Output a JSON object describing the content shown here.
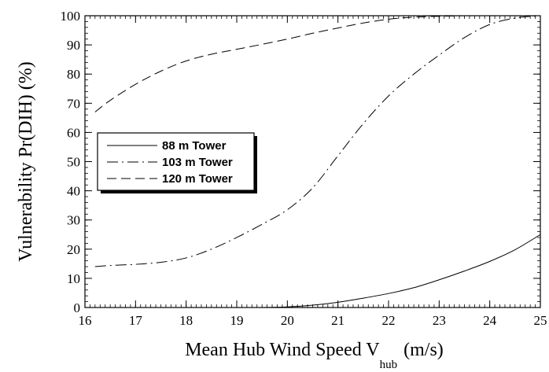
{
  "chart_data": {
    "type": "line",
    "xlabel_main": "Mean Hub Wind Speed V",
    "xlabel_sub": "hub",
    "xlabel_unit": "(m/s)",
    "ylabel": "Vulnerability Pr(DIH) (%)",
    "xlim": [
      16,
      25
    ],
    "ylim": [
      0,
      100
    ],
    "xticks": [
      16,
      17,
      18,
      19,
      20,
      21,
      22,
      23,
      24,
      25
    ],
    "yticks": [
      0,
      10,
      20,
      30,
      40,
      50,
      60,
      70,
      80,
      90,
      100
    ],
    "grid": false,
    "legend_position": "middle-left",
    "series": [
      {
        "name": "88 m Tower",
        "dash": "solid",
        "x": [
          19.5,
          20.0,
          20.5,
          21.0,
          21.5,
          22.0,
          22.5,
          23.0,
          23.5,
          24.0,
          24.5,
          25.0
        ],
        "y": [
          0.0,
          0.2,
          0.8,
          1.8,
          3.2,
          4.8,
          6.8,
          9.5,
          12.5,
          15.8,
          19.8,
          25.0
        ]
      },
      {
        "name": "103 m Tower",
        "dash": "dashdot",
        "x": [
          16.2,
          16.5,
          17.0,
          17.5,
          18.0,
          18.5,
          19.0,
          19.5,
          20.0,
          20.5,
          21.0,
          21.5,
          22.0,
          22.5,
          23.0,
          23.5,
          24.0,
          24.5,
          25.0
        ],
        "y": [
          14.0,
          14.4,
          14.8,
          15.5,
          17.0,
          20.0,
          24.0,
          28.5,
          33.5,
          41.0,
          52.0,
          63.0,
          72.5,
          80.0,
          86.5,
          92.5,
          97.0,
          99.2,
          100.0
        ]
      },
      {
        "name": "120 m Tower",
        "dash": "dashed",
        "x": [
          16.2,
          16.5,
          17.0,
          17.5,
          18.0,
          18.5,
          19.0,
          19.5,
          20.0,
          20.5,
          21.0,
          21.5,
          22.0,
          22.5,
          23.0,
          23.5,
          24.0,
          24.5,
          25.0
        ],
        "y": [
          67.0,
          71.0,
          76.5,
          81.0,
          84.5,
          86.8,
          88.5,
          90.2,
          92.0,
          94.0,
          95.8,
          97.5,
          98.8,
          99.5,
          99.8,
          100.0,
          100.0,
          100.0,
          100.0
        ]
      }
    ]
  }
}
